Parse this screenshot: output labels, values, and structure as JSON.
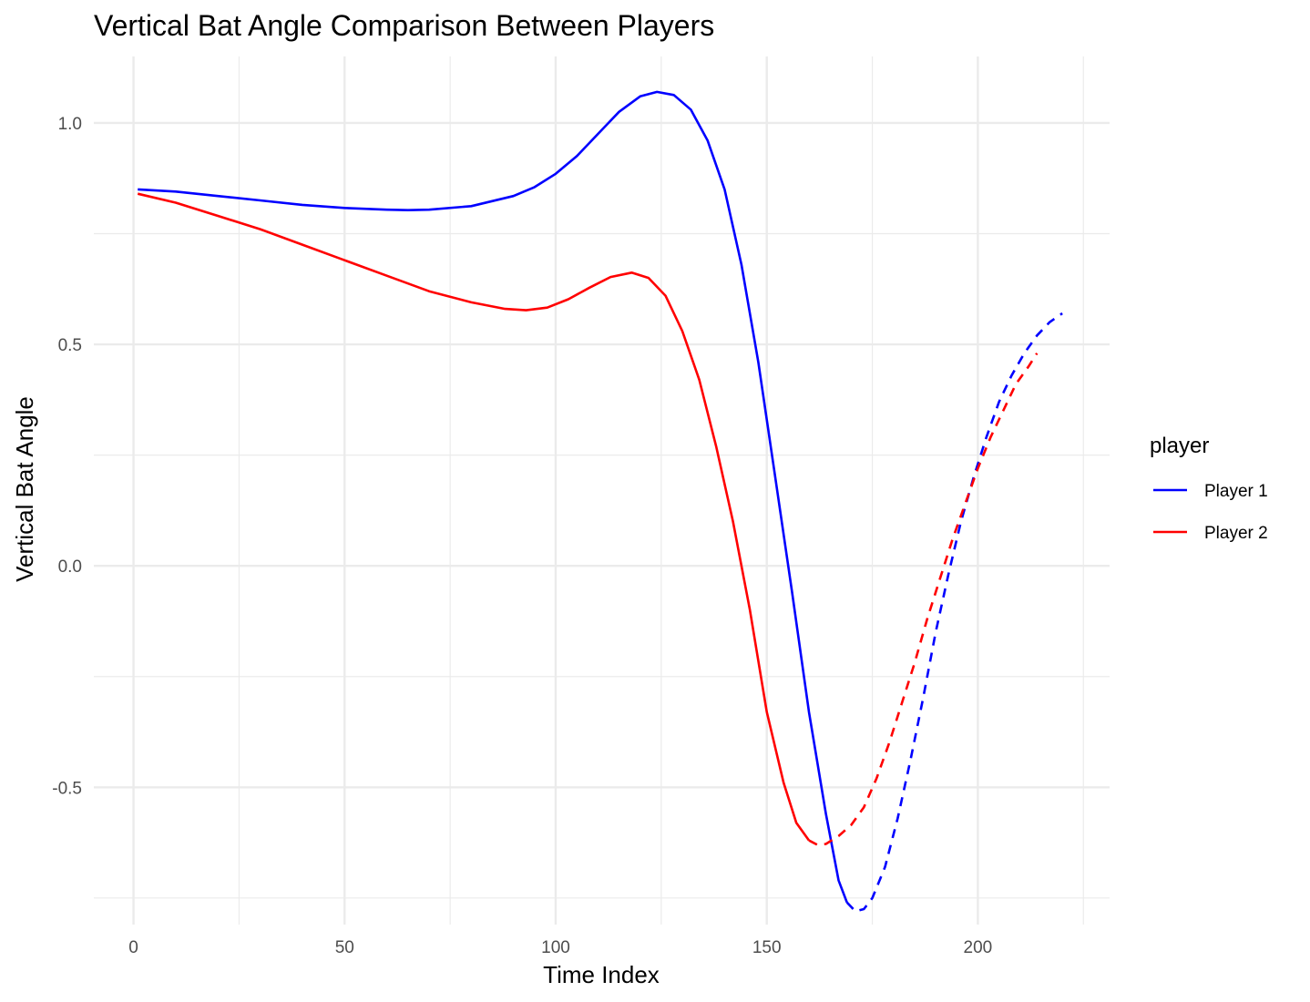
{
  "chart_data": {
    "type": "line",
    "title": "Vertical Bat Angle Comparison Between Players",
    "xlabel": "Time Index",
    "ylabel": "Vertical Bat Angle",
    "xlim": [
      -9.4,
      231.2
    ],
    "ylim": [
      -0.81,
      1.15
    ],
    "x_ticks": [
      0,
      50,
      100,
      150,
      200
    ],
    "y_ticks": [
      -0.5,
      0.0,
      0.5,
      1.0
    ],
    "x_tick_labels": [
      "0",
      "50",
      "100",
      "150",
      "200"
    ],
    "y_tick_labels": [
      "-0.5",
      "0.0",
      "0.5",
      "1.0"
    ],
    "x_minor_ticks": [
      25,
      75,
      125,
      175,
      225
    ],
    "y_minor_ticks": [
      -0.75,
      -0.25,
      0.25,
      0.75
    ],
    "grid": true,
    "legend": {
      "title": "player",
      "position": "right"
    },
    "series": [
      {
        "name": "Player 1",
        "color": "#0000ff",
        "segments": [
          {
            "style": "solid",
            "points": [
              [
                1,
                0.85
              ],
              [
                10,
                0.845
              ],
              [
                20,
                0.835
              ],
              [
                30,
                0.825
              ],
              [
                40,
                0.815
              ],
              [
                50,
                0.808
              ],
              [
                60,
                0.804
              ],
              [
                65,
                0.803
              ],
              [
                70,
                0.804
              ],
              [
                80,
                0.812
              ],
              [
                90,
                0.835
              ],
              [
                95,
                0.855
              ],
              [
                100,
                0.885
              ],
              [
                105,
                0.925
              ],
              [
                110,
                0.975
              ],
              [
                115,
                1.025
              ],
              [
                120,
                1.06
              ],
              [
                124,
                1.07
              ],
              [
                128,
                1.063
              ],
              [
                132,
                1.03
              ],
              [
                136,
                0.96
              ],
              [
                140,
                0.85
              ],
              [
                144,
                0.68
              ],
              [
                148,
                0.46
              ],
              [
                152,
                0.2
              ],
              [
                156,
                -0.06
              ],
              [
                160,
                -0.33
              ],
              [
                164,
                -0.56
              ],
              [
                167,
                -0.71
              ],
              [
                169,
                -0.76
              ]
            ]
          },
          {
            "style": "dashed",
            "points": [
              [
                169,
                -0.76
              ],
              [
                171,
                -0.78
              ],
              [
                173,
                -0.775
              ],
              [
                175,
                -0.75
              ],
              [
                178,
                -0.68
              ],
              [
                181,
                -0.57
              ],
              [
                184,
                -0.44
              ],
              [
                187,
                -0.3
              ],
              [
                190,
                -0.15
              ],
              [
                193,
                -0.02
              ],
              [
                196,
                0.1
              ],
              [
                199,
                0.2
              ],
              [
                202,
                0.29
              ],
              [
                205,
                0.37
              ],
              [
                208,
                0.43
              ],
              [
                211,
                0.48
              ],
              [
                214,
                0.52
              ],
              [
                217,
                0.55
              ],
              [
                220,
                0.57
              ]
            ]
          }
        ]
      },
      {
        "name": "Player 2",
        "color": "#ff0000",
        "segments": [
          {
            "style": "solid",
            "points": [
              [
                1,
                0.84
              ],
              [
                10,
                0.82
              ],
              [
                20,
                0.79
              ],
              [
                30,
                0.76
              ],
              [
                40,
                0.725
              ],
              [
                50,
                0.69
              ],
              [
                60,
                0.655
              ],
              [
                70,
                0.62
              ],
              [
                80,
                0.595
              ],
              [
                88,
                0.58
              ],
              [
                93,
                0.577
              ],
              [
                98,
                0.583
              ],
              [
                103,
                0.602
              ],
              [
                108,
                0.628
              ],
              [
                113,
                0.652
              ],
              [
                118,
                0.662
              ],
              [
                122,
                0.65
              ],
              [
                126,
                0.61
              ],
              [
                130,
                0.53
              ],
              [
                134,
                0.42
              ],
              [
                138,
                0.27
              ],
              [
                142,
                0.1
              ],
              [
                146,
                -0.1
              ],
              [
                150,
                -0.33
              ],
              [
                154,
                -0.49
              ],
              [
                157,
                -0.58
              ],
              [
                160,
                -0.62
              ]
            ]
          },
          {
            "style": "dashed",
            "points": [
              [
                160,
                -0.62
              ],
              [
                162,
                -0.63
              ],
              [
                164,
                -0.628
              ],
              [
                167,
                -0.61
              ],
              [
                170,
                -0.585
              ],
              [
                173,
                -0.545
              ],
              [
                176,
                -0.48
              ],
              [
                179,
                -0.4
              ],
              [
                182,
                -0.31
              ],
              [
                185,
                -0.22
              ],
              [
                188,
                -0.12
              ],
              [
                191,
                -0.03
              ],
              [
                194,
                0.06
              ],
              [
                197,
                0.14
              ],
              [
                200,
                0.22
              ],
              [
                203,
                0.29
              ],
              [
                206,
                0.35
              ],
              [
                209,
                0.41
              ],
              [
                212,
                0.45
              ],
              [
                214,
                0.48
              ]
            ]
          }
        ]
      }
    ]
  }
}
